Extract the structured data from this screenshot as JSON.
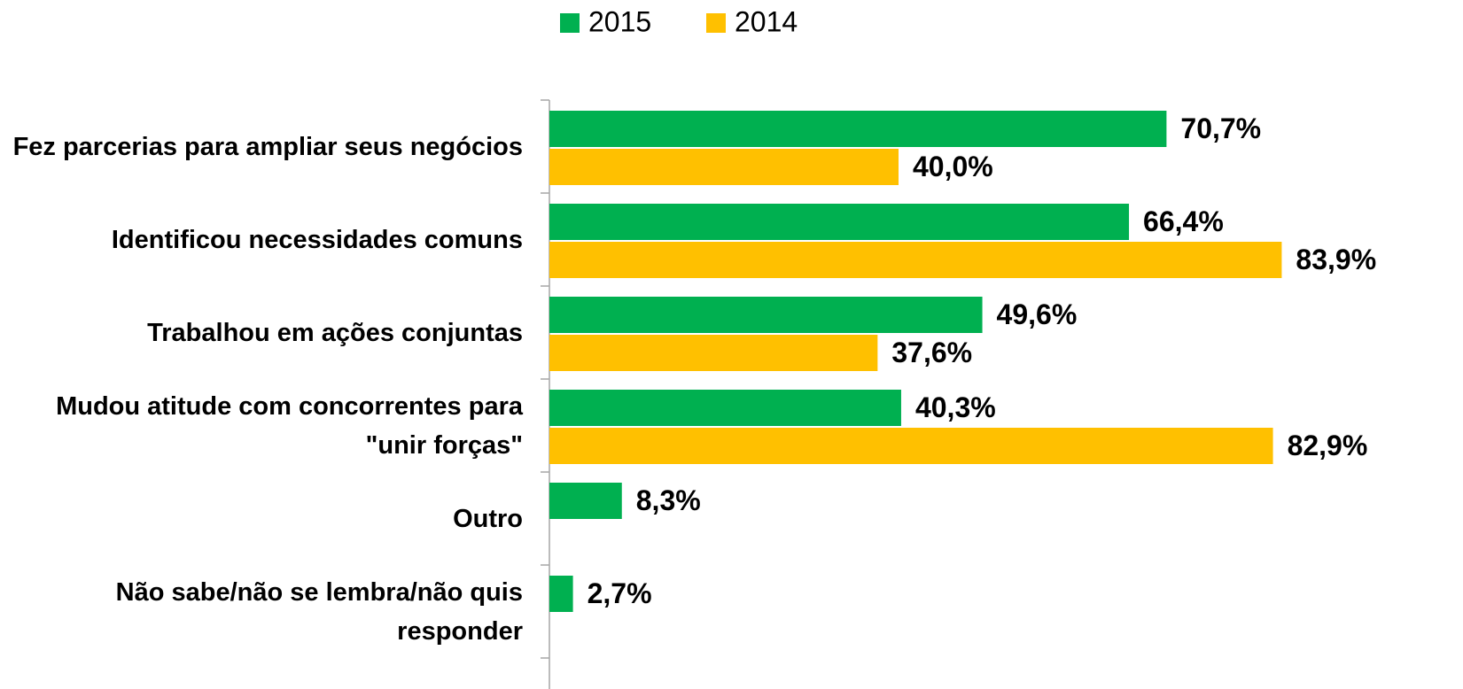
{
  "chart_data": {
    "type": "bar",
    "orientation": "horizontal",
    "categories": [
      "Fez parcerias para ampliar seus negócios",
      "Identificou necessidades comuns",
      "Trabalhou em ações conjuntas",
      "Mudou atitude com concorrentes para \"unir forças\"",
      "Outro",
      "Não sabe/não se lembra/não quis responder"
    ],
    "series": [
      {
        "name": "2015",
        "color": "#00b050",
        "values": [
          70.7,
          66.4,
          49.6,
          40.3,
          8.3,
          2.7
        ],
        "value_labels": [
          "70,7%",
          "66,4%",
          "49,6%",
          "40,3%",
          "8,3%",
          "2,7%"
        ]
      },
      {
        "name": "2014",
        "color": "#ffc000",
        "values": [
          40.0,
          83.9,
          37.6,
          82.9,
          null,
          null
        ],
        "value_labels": [
          "40,0%",
          "83,9%",
          "37,6%",
          "82,9%",
          null,
          null
        ]
      }
    ],
    "legend": "top"
  }
}
